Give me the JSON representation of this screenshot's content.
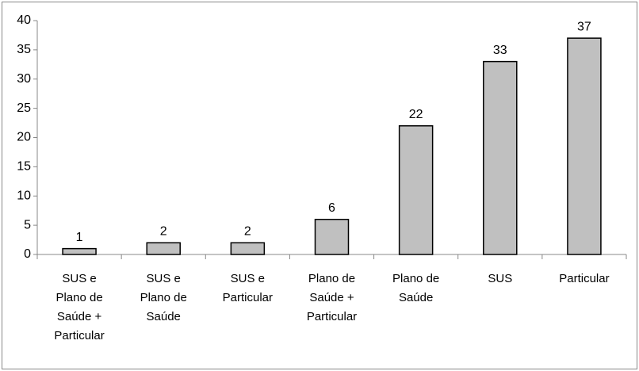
{
  "chart_data": {
    "type": "bar",
    "categories": [
      "SUS e Plano de Saúde + Particular",
      "SUS e Plano de Saúde",
      "SUS e Particular",
      "Plano de Saúde + Particular",
      "Plano de Saúde",
      "SUS",
      "Particular"
    ],
    "values": [
      1,
      2,
      2,
      6,
      22,
      33,
      37
    ],
    "color": "#c0c0c0",
    "ylim": [
      0,
      40
    ],
    "yticks": [
      0,
      5,
      10,
      15,
      20,
      25,
      30,
      35,
      40
    ],
    "grid": false
  }
}
